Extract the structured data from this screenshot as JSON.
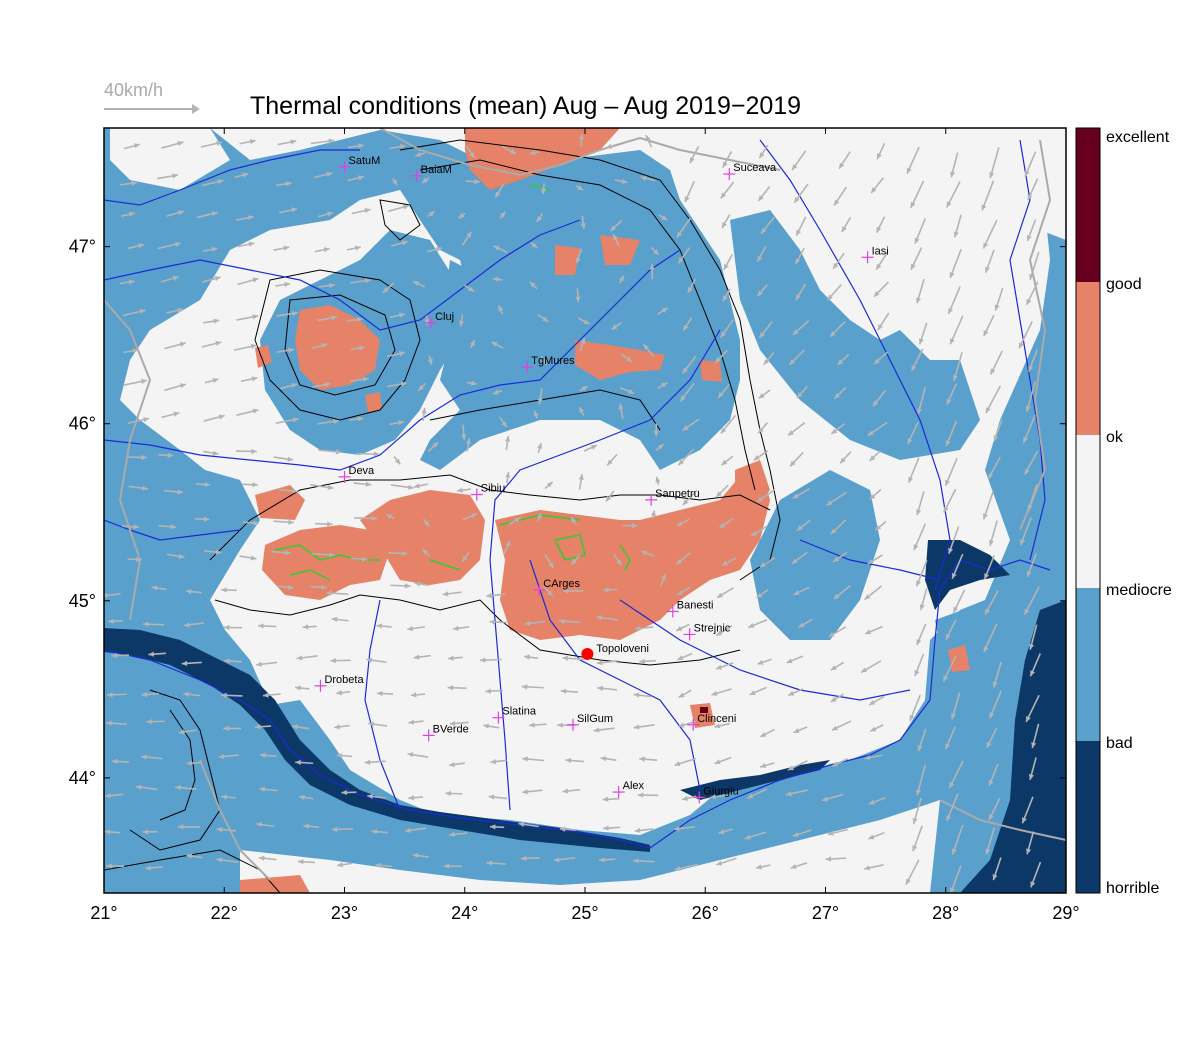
{
  "title": "Thermal conditions (mean) Aug – Aug  2019−2019",
  "wind_reference": {
    "label": "40km/h"
  },
  "axes": {
    "x_ticks": [
      "21°",
      "22°",
      "23°",
      "24°",
      "25°",
      "26°",
      "27°",
      "28°",
      "29°"
    ],
    "y_ticks": [
      "44°",
      "45°",
      "46°",
      "47°"
    ],
    "lon_range": [
      21,
      29
    ],
    "lat_range": [
      43.35,
      47.67
    ]
  },
  "legend": {
    "labels": [
      "excellent",
      "good",
      "ok",
      "mediocre",
      "bad",
      "horrible"
    ],
    "colors": {
      "excellent": "#67001f",
      "good": "#e58267",
      "ok": "#f4f4f4",
      "mediocre": "#f4f4f4",
      "bad": "#5aa0cd",
      "horrible": "#0b3867"
    }
  },
  "colors": {
    "sea": "#0b3867",
    "bad": "#5aa0cd",
    "ok": "#f4f4f4",
    "good": "#e58267",
    "rivers": "#1a2bd6",
    "wind": "#b4b4b4",
    "city_marker": "#e040e0",
    "highlight": "#ff0000"
  },
  "cities": [
    {
      "name": "SatuM",
      "lon": 23.0,
      "lat": 47.45
    },
    {
      "name": "BaiaM",
      "lon": 23.6,
      "lat": 47.4
    },
    {
      "name": "Suceava",
      "lon": 26.2,
      "lat": 47.41
    },
    {
      "name": "Iasi",
      "lon": 27.35,
      "lat": 46.94
    },
    {
      "name": "Cluj",
      "lon": 23.72,
      "lat": 46.57
    },
    {
      "name": "TgMures",
      "lon": 24.52,
      "lat": 46.32
    },
    {
      "name": "Deva",
      "lon": 23.0,
      "lat": 45.7
    },
    {
      "name": "Sibiu",
      "lon": 24.1,
      "lat": 45.6
    },
    {
      "name": "Sanpetru",
      "lon": 25.55,
      "lat": 45.57
    },
    {
      "name": "CArges",
      "lon": 24.62,
      "lat": 45.06
    },
    {
      "name": "Banesti",
      "lon": 25.73,
      "lat": 44.94
    },
    {
      "name": "Strejnic",
      "lon": 25.87,
      "lat": 44.81
    },
    {
      "name": "Drobeta",
      "lon": 22.8,
      "lat": 44.52
    },
    {
      "name": "Slatina",
      "lon": 24.28,
      "lat": 44.34
    },
    {
      "name": "SilGum",
      "lon": 24.9,
      "lat": 44.3
    },
    {
      "name": "Clinceni",
      "lon": 25.9,
      "lat": 44.3
    },
    {
      "name": "BVerde",
      "lon": 23.7,
      "lat": 44.24
    },
    {
      "name": "Alex",
      "lon": 25.28,
      "lat": 43.92
    },
    {
      "name": "Giurgiu",
      "lon": 25.95,
      "lat": 43.89
    }
  ],
  "highlight_location": {
    "name": "Topoloveni",
    "lon": 25.02,
    "lat": 44.7
  }
}
